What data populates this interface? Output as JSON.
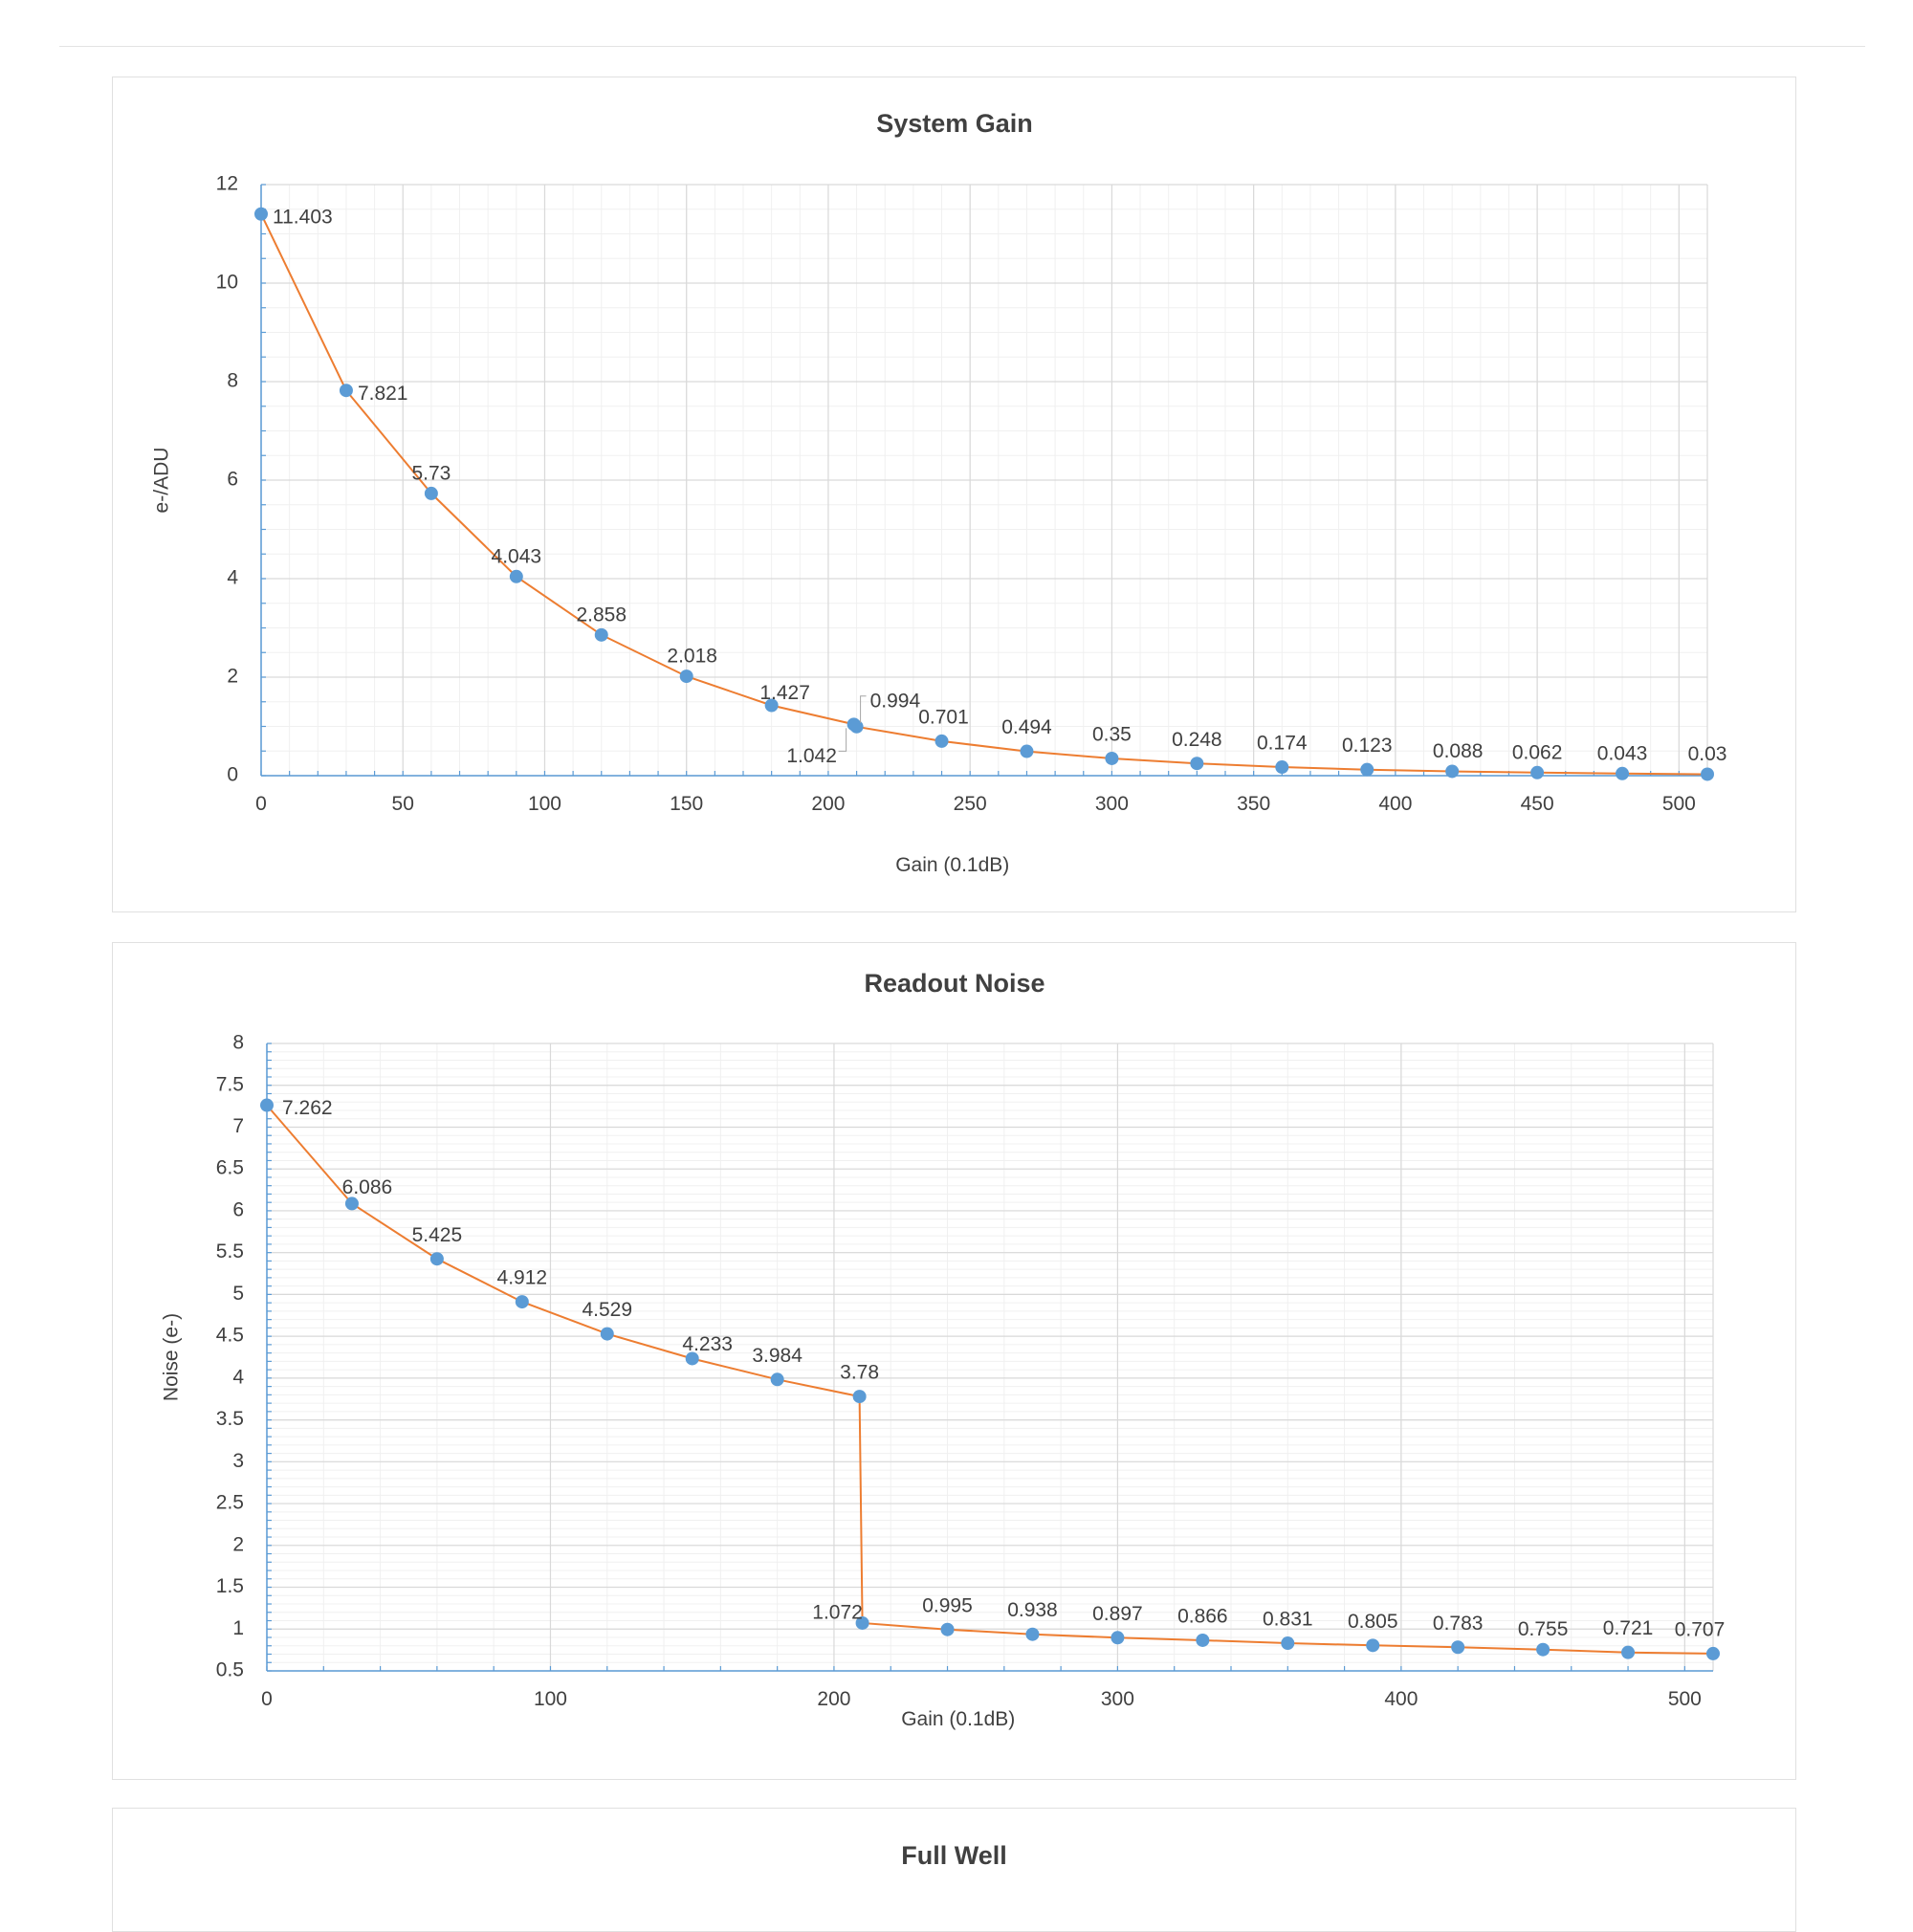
{
  "chart_data": [
    {
      "type": "line",
      "title": "System Gain",
      "xlabel": "Gain (0.1dB)",
      "ylabel": "e-/ADU",
      "xlim": [
        0,
        510
      ],
      "ylim": [
        0,
        12
      ],
      "xticks": [
        0,
        50,
        100,
        150,
        200,
        250,
        300,
        350,
        400,
        450,
        500
      ],
      "yticks": [
        0,
        2,
        4,
        6,
        8,
        10,
        12
      ],
      "grid": true,
      "series": [
        {
          "color": "#ed7d31",
          "marker_color": "#5b9bd5",
          "x": [
            0,
            30,
            60,
            90,
            120,
            150,
            180,
            209,
            210,
            240,
            270,
            300,
            330,
            360,
            390,
            420,
            450,
            480,
            510
          ],
          "y": [
            11.403,
            7.821,
            5.73,
            4.043,
            2.858,
            2.018,
            1.427,
            1.042,
            0.994,
            0.701,
            0.494,
            0.35,
            0.248,
            0.174,
            0.123,
            0.088,
            0.062,
            0.043,
            0.03
          ],
          "labels": [
            "11.403",
            "7.821",
            "5.73",
            "4.043",
            "2.858",
            "2.018",
            "1.427",
            "1.042",
            "0.994",
            "0.701",
            "0.494",
            "0.35",
            "0.248",
            "0.174",
            "0.123",
            "0.088",
            "0.062",
            "0.043",
            "0.03"
          ]
        }
      ]
    },
    {
      "type": "line",
      "title": "Readout Noise",
      "xlabel": "Gain (0.1dB)",
      "ylabel": "Noise (e-)",
      "xlim": [
        0,
        510
      ],
      "ylim": [
        0.5,
        8
      ],
      "xticks": [
        0,
        100,
        200,
        300,
        400,
        500
      ],
      "yticks": [
        0.5,
        1,
        1.5,
        2,
        2.5,
        3,
        3.5,
        4,
        4.5,
        5,
        5.5,
        6,
        6.5,
        7,
        7.5,
        8
      ],
      "grid": true,
      "series": [
        {
          "color": "#ed7d31",
          "marker_color": "#5b9bd5",
          "x": [
            0,
            30,
            60,
            90,
            120,
            150,
            180,
            209,
            210,
            240,
            270,
            300,
            330,
            360,
            390,
            420,
            450,
            480,
            510
          ],
          "y": [
            7.262,
            6.086,
            5.425,
            4.912,
            4.529,
            4.233,
            3.984,
            3.78,
            1.072,
            0.995,
            0.938,
            0.897,
            0.866,
            0.831,
            0.805,
            0.783,
            0.755,
            0.721,
            0.707
          ],
          "labels": [
            "7.262",
            "6.086",
            "5.425",
            "4.912",
            "4.529",
            "4.233",
            "3.984",
            "3.78",
            "1.072",
            "0.995",
            "0.938",
            "0.897",
            "0.866",
            "0.831",
            "0.805",
            "0.783",
            "0.755",
            "0.721",
            "0.707"
          ]
        }
      ]
    },
    {
      "type": "line",
      "title": "Full Well"
    }
  ]
}
